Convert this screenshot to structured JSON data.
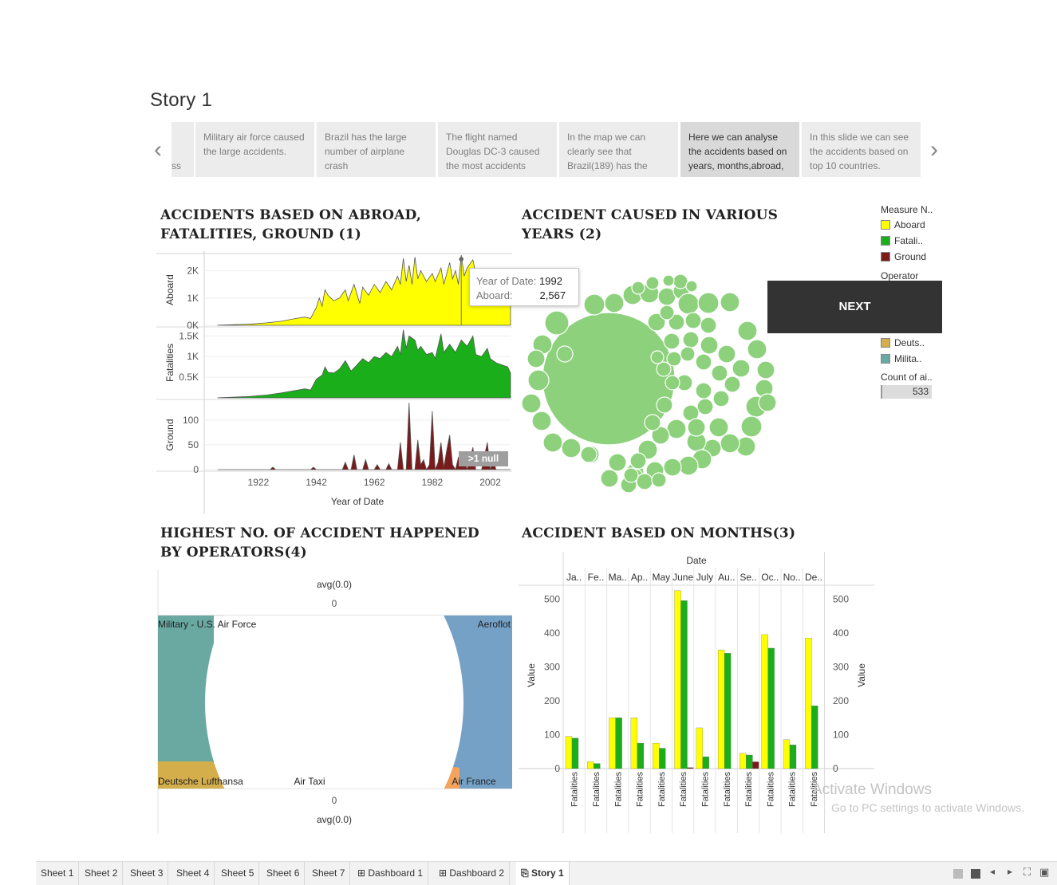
{
  "story": {
    "title": "Story 1",
    "storypoints": [
      {
        "text": "ss",
        "active": false
      },
      {
        "text": "Military air force caused the large accidents.",
        "active": false
      },
      {
        "text": "Brazil has the large number of airplane crash",
        "active": false
      },
      {
        "text": "The flight named Douglas DC-3 caused the most accidents",
        "active": false
      },
      {
        "text": "In the map we can clearly see that Brazil(189) has the",
        "active": false
      },
      {
        "text": "Here we can analyse the accidents based on years, months,abroad,",
        "active": true
      },
      {
        "text": "In this slide we can see the accidents based on top 10 countries.",
        "active": false
      }
    ],
    "prev_icon": "chevron-left-icon",
    "next_icon": "chevron-right-icon"
  },
  "sheets": {
    "s1_title": "Accidents Based on abroad, fatalities, ground (1)",
    "s2_title": "Accident caused in various years (2)",
    "s3_title": "Accident based on months(3)",
    "s4_title": "Highest No. of accident happened by operators(4)"
  },
  "legend": {
    "measure_title": "Measure N..",
    "measure_items": [
      {
        "label": "Aboard",
        "color": "#ffff00"
      },
      {
        "label": "Fatali..",
        "color": "#1aaf1a"
      },
      {
        "label": "Ground",
        "color": "#7b1a1a"
      }
    ],
    "operator_title": "Operator",
    "operator_items": [
      {
        "label": "Deuts..",
        "color": "#d4ae4a"
      },
      {
        "label": "Milita..",
        "color": "#6aa9a2"
      }
    ],
    "count_title": "Count of ai..",
    "count_value": "533"
  },
  "next_button": "NEXT",
  "tooltip": {
    "k1": "Year of Date:",
    "v1": "1992",
    "k2": "Aboard:",
    "v2": "2,567"
  },
  "null_badge": ">1 null",
  "chart_data": [
    {
      "type": "area",
      "title": "Accidents Based on abroad, fatalities, ground (1)",
      "xlabel": "Year of Date",
      "x_ticks": [
        "1922",
        "1942",
        "1962",
        "1982",
        "2002"
      ],
      "xlim": [
        1908,
        2009
      ],
      "series": [
        {
          "name": "Aboard",
          "color": "#ffff00",
          "ylim": [
            0,
            2600
          ],
          "y_ticks": [
            {
              "v": 0,
              "l": "0K"
            },
            {
              "v": 1000,
              "l": "1K"
            },
            {
              "v": 2000,
              "l": "2K"
            }
          ],
          "points": [
            [
              1908,
              2
            ],
            [
              1913,
              20
            ],
            [
              1918,
              40
            ],
            [
              1920,
              50
            ],
            [
              1925,
              90
            ],
            [
              1930,
              150
            ],
            [
              1935,
              250
            ],
            [
              1938,
              300
            ],
            [
              1940,
              250
            ],
            [
              1942,
              650
            ],
            [
              1943,
              1000
            ],
            [
              1944,
              700
            ],
            [
              1945,
              1300
            ],
            [
              1946,
              1100
            ],
            [
              1948,
              900
            ],
            [
              1950,
              1000
            ],
            [
              1952,
              1300
            ],
            [
              1953,
              900
            ],
            [
              1955,
              1500
            ],
            [
              1957,
              800
            ],
            [
              1958,
              1400
            ],
            [
              1960,
              1100
            ],
            [
              1962,
              1500
            ],
            [
              1964,
              1200
            ],
            [
              1966,
              1600
            ],
            [
              1968,
              1300
            ],
            [
              1970,
              1800
            ],
            [
              1971,
              1500
            ],
            [
              1972,
              2450
            ],
            [
              1973,
              1600
            ],
            [
              1974,
              2200
            ],
            [
              1975,
              1500
            ],
            [
              1976,
              2500
            ],
            [
              1977,
              1700
            ],
            [
              1978,
              2000
            ],
            [
              1980,
              1600
            ],
            [
              1982,
              1900
            ],
            [
              1983,
              1600
            ],
            [
              1985,
              2100
            ],
            [
              1986,
              1500
            ],
            [
              1988,
              2300
            ],
            [
              1989,
              1700
            ],
            [
              1990,
              2000
            ],
            [
              1991,
              1500
            ],
            [
              1992,
              2567
            ],
            [
              1993,
              1800
            ],
            [
              1994,
              2100
            ],
            [
              1996,
              2400
            ],
            [
              1997,
              1900
            ],
            [
              1999,
              1800
            ],
            [
              2000,
              1500
            ],
            [
              2001,
              1900
            ],
            [
              2002,
              1600
            ],
            [
              2004,
              1400
            ],
            [
              2006,
              1200
            ],
            [
              2008,
              900
            ],
            [
              2009,
              900
            ]
          ]
        },
        {
          "name": "Fatalities",
          "color": "#1aaf1a",
          "ylim": [
            0,
            1700
          ],
          "y_ticks": [
            {
              "v": 500,
              "l": "0.5K"
            },
            {
              "v": 1000,
              "l": "1K"
            },
            {
              "v": 1500,
              "l": "1.5K"
            }
          ],
          "points": [
            [
              1908,
              1
            ],
            [
              1913,
              15
            ],
            [
              1918,
              30
            ],
            [
              1920,
              40
            ],
            [
              1925,
              70
            ],
            [
              1930,
              120
            ],
            [
              1935,
              180
            ],
            [
              1938,
              220
            ],
            [
              1940,
              190
            ],
            [
              1942,
              450
            ],
            [
              1944,
              550
            ],
            [
              1945,
              750
            ],
            [
              1946,
              620
            ],
            [
              1948,
              600
            ],
            [
              1950,
              700
            ],
            [
              1952,
              900
            ],
            [
              1954,
              650
            ],
            [
              1956,
              800
            ],
            [
              1958,
              950
            ],
            [
              1960,
              850
            ],
            [
              1962,
              1000
            ],
            [
              1964,
              950
            ],
            [
              1966,
              1100
            ],
            [
              1968,
              1000
            ],
            [
              1970,
              1250
            ],
            [
              1971,
              1050
            ],
            [
              1972,
              1650
            ],
            [
              1973,
              1200
            ],
            [
              1974,
              1500
            ],
            [
              1976,
              1400
            ],
            [
              1977,
              1150
            ],
            [
              1978,
              1250
            ],
            [
              1980,
              1050
            ],
            [
              1982,
              1100
            ],
            [
              1983,
              950
            ],
            [
              1985,
              1550
            ],
            [
              1986,
              1100
            ],
            [
              1988,
              1300
            ],
            [
              1990,
              1100
            ],
            [
              1992,
              1400
            ],
            [
              1994,
              1250
            ],
            [
              1996,
              1500
            ],
            [
              1997,
              1050
            ],
            [
              1999,
              1000
            ],
            [
              2001,
              1200
            ],
            [
              2002,
              950
            ],
            [
              2004,
              850
            ],
            [
              2006,
              800
            ],
            [
              2008,
              750
            ],
            [
              2009,
              600
            ]
          ]
        },
        {
          "name": "Ground",
          "color": "#7b1a1a",
          "ylim": [
            0,
            140
          ],
          "y_ticks": [
            {
              "v": 0,
              "l": "0"
            },
            {
              "v": 50,
              "l": "50"
            },
            {
              "v": 100,
              "l": "100"
            }
          ],
          "points": [
            [
              1908,
              0
            ],
            [
              1926,
              0
            ],
            [
              1927,
              5
            ],
            [
              1928,
              0
            ],
            [
              1940,
              0
            ],
            [
              1941,
              5
            ],
            [
              1942,
              0
            ],
            [
              1951,
              0
            ],
            [
              1952,
              15
            ],
            [
              1953,
              0
            ],
            [
              1954,
              0
            ],
            [
              1955,
              30
            ],
            [
              1956,
              0
            ],
            [
              1958,
              0
            ],
            [
              1959,
              20
            ],
            [
              1960,
              0
            ],
            [
              1962,
              0
            ],
            [
              1963,
              10
            ],
            [
              1964,
              0
            ],
            [
              1966,
              0
            ],
            [
              1967,
              12
            ],
            [
              1968,
              0
            ],
            [
              1970,
              0
            ],
            [
              1971,
              55
            ],
            [
              1972,
              0
            ],
            [
              1973,
              0
            ],
            [
              1974,
              135
            ],
            [
              1975,
              0
            ],
            [
              1976,
              0
            ],
            [
              1977,
              60
            ],
            [
              1978,
              10
            ],
            [
              1979,
              20
            ],
            [
              1980,
              0
            ],
            [
              1981,
              10
            ],
            [
              1982,
              118
            ],
            [
              1983,
              0
            ],
            [
              1984,
              15
            ],
            [
              1985,
              55
            ],
            [
              1986,
              5
            ],
            [
              1987,
              40
            ],
            [
              1988,
              70
            ],
            [
              1989,
              10
            ],
            [
              1990,
              0
            ],
            [
              1991,
              25
            ],
            [
              1993,
              25
            ],
            [
              1994,
              0
            ],
            [
              1996,
              45
            ],
            [
              1997,
              0
            ],
            [
              1999,
              0
            ],
            [
              2001,
              55
            ],
            [
              2002,
              0
            ],
            [
              2003,
              20
            ],
            [
              2004,
              0
            ],
            [
              2009,
              0
            ]
          ]
        }
      ]
    },
    {
      "type": "bar",
      "title": "Accident based on months(3)",
      "xlabel": "Date",
      "ylabel": "Value",
      "categories": [
        "Ja..",
        "Fe..",
        "Ma..",
        "Ap..",
        "May",
        "June",
        "July",
        "Au..",
        "Se..",
        "Oc..",
        "No..",
        "De.."
      ],
      "ylim": [
        0,
        550
      ],
      "y_ticks": [
        0,
        100,
        200,
        300,
        400,
        500
      ],
      "bar_label": "Fatalities",
      "series": [
        {
          "name": "Aboard",
          "color": "#ffff00",
          "values": [
            95,
            20,
            150,
            150,
            75,
            525,
            120,
            350,
            45,
            395,
            85,
            385
          ]
        },
        {
          "name": "Fatalities",
          "color": "#1aaf1a",
          "values": [
            90,
            15,
            150,
            75,
            60,
            495,
            35,
            340,
            40,
            355,
            70,
            185
          ]
        },
        {
          "name": "Ground",
          "color": "#7b1a1a",
          "values": [
            0,
            0,
            0,
            0,
            0,
            3,
            0,
            0,
            20,
            0,
            0,
            0
          ]
        }
      ]
    },
    {
      "type": "pie",
      "title": "Highest No. of accident happened by operators(4)",
      "top_label": "avg(0.0)",
      "top_value": "0",
      "bottom_value": "0",
      "bottom_label": "avg(0.0)",
      "slices": [
        {
          "label": "Military - U.S. Air Force",
          "color": "#6aa9a2"
        },
        {
          "label": "Aeroflot",
          "color": "#76a1c7"
        },
        {
          "label": "Deutsche Lufthansa",
          "color": "#d4ae4a"
        },
        {
          "label": "Air Taxi",
          "color": "#ffffff"
        },
        {
          "label": "Air France",
          "color": "#f4a35c"
        }
      ]
    }
  ],
  "bottom_tabs": [
    {
      "label": "Sheet 1"
    },
    {
      "label": "Sheet 2"
    },
    {
      "label": "Sheet 3"
    },
    {
      "label": "Sheet 4"
    },
    {
      "label": "Sheet 5"
    },
    {
      "label": "Sheet 6"
    },
    {
      "label": "Sheet 7"
    },
    {
      "label": "Dashboard 1"
    },
    {
      "label": "Dashboard 2"
    },
    {
      "label": "Story 1"
    }
  ],
  "watermark": {
    "line1": "Activate Windows",
    "line2": "Go to PC settings to activate Windows."
  }
}
